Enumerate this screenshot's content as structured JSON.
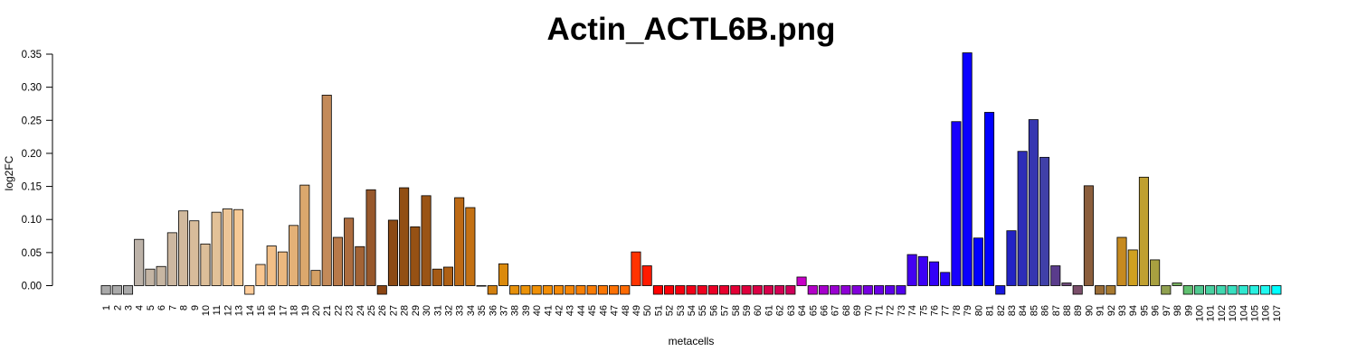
{
  "chart_data": {
    "type": "bar",
    "title": "Actin_ACTL6B.png",
    "xlabel": "metacells",
    "ylabel": "log2FC",
    "ylim": [
      -0.013,
      0.353
    ],
    "yticks": [
      "0.00",
      "0.05",
      "0.10",
      "0.15",
      "0.20",
      "0.25",
      "0.30",
      "0.35"
    ],
    "grid": false,
    "categories": [
      "1",
      "2",
      "3",
      "4",
      "5",
      "6",
      "7",
      "8",
      "9",
      "10",
      "11",
      "12",
      "13",
      "14",
      "15",
      "16",
      "17",
      "18",
      "19",
      "20",
      "21",
      "22",
      "23",
      "24",
      "25",
      "26",
      "27",
      "28",
      "29",
      "30",
      "31",
      "32",
      "33",
      "34",
      "35",
      "36",
      "37",
      "38",
      "39",
      "40",
      "41",
      "42",
      "43",
      "44",
      "45",
      "46",
      "47",
      "48",
      "49",
      "50",
      "51",
      "52",
      "53",
      "54",
      "55",
      "56",
      "57",
      "58",
      "59",
      "60",
      "61",
      "62",
      "63",
      "64",
      "65",
      "66",
      "67",
      "68",
      "69",
      "70",
      "71",
      "72",
      "73",
      "74",
      "75",
      "76",
      "77",
      "78",
      "79",
      "80",
      "81",
      "82",
      "83",
      "84",
      "85",
      "86",
      "87",
      "88",
      "89",
      "90",
      "91",
      "92",
      "93",
      "94",
      "95",
      "96",
      "97",
      "98",
      "99",
      "100",
      "101",
      "102",
      "103",
      "104",
      "105",
      "106",
      "107"
    ],
    "values": [
      -0.013,
      -0.013,
      -0.013,
      0.07,
      0.025,
      0.029,
      0.08,
      0.113,
      0.098,
      0.063,
      0.111,
      0.116,
      0.115,
      -0.013,
      0.032,
      0.06,
      0.051,
      0.091,
      0.152,
      0.023,
      0.288,
      0.073,
      0.102,
      0.059,
      0.145,
      -0.013,
      0.099,
      0.148,
      0.089,
      0.136,
      0.025,
      0.028,
      0.133,
      0.118,
      0.0,
      -0.013,
      0.033,
      -0.013,
      -0.013,
      -0.013,
      -0.013,
      -0.013,
      -0.013,
      -0.013,
      -0.013,
      -0.013,
      -0.013,
      -0.013,
      0.051,
      0.03,
      -0.013,
      -0.013,
      -0.013,
      -0.013,
      -0.013,
      -0.013,
      -0.013,
      -0.013,
      -0.013,
      -0.013,
      -0.013,
      -0.013,
      -0.013,
      0.013,
      -0.013,
      -0.013,
      -0.013,
      -0.013,
      -0.013,
      -0.013,
      -0.013,
      -0.013,
      -0.013,
      0.047,
      0.044,
      0.036,
      0.02,
      0.248,
      0.352,
      0.072,
      0.262,
      -0.013,
      0.083,
      0.203,
      0.251,
      0.194,
      0.03,
      0.004,
      -0.013,
      0.151,
      -0.013,
      -0.013,
      0.073,
      0.054,
      0.164,
      0.039,
      -0.013,
      0.004,
      -0.013,
      -0.013,
      -0.013,
      -0.013,
      -0.013,
      -0.013,
      -0.013,
      -0.013,
      -0.013
    ],
    "colors": [
      "#a9a9a9",
      "#a9a9a9",
      "#a9a9a9",
      "#bcb2a8",
      "#c4b5a4",
      "#c7b6a2",
      "#ccb7a0",
      "#d1b99d",
      "#d8bc9b",
      "#dcbe99",
      "#e2c198",
      "#ecc597",
      "#f6c995",
      "#ffcc99",
      "#f9c690",
      "#f2bf87",
      "#ebb87f",
      "#e4b177",
      "#dba86d",
      "#d3a065",
      "#c38a59",
      "#b8794a",
      "#ad6d3f",
      "#a36335",
      "#97582c",
      "#8b4513",
      "#8c4a14",
      "#924f13",
      "#965114",
      "#9a5415",
      "#a55a15",
      "#ae6015",
      "#bd6a15",
      "#c47113",
      "#c97812",
      "#d2800f",
      "#db8a0c",
      "#e6900a",
      "#eb9208",
      "#ef9006",
      "#f28d05",
      "#f48905",
      "#f68505",
      "#f87f04",
      "#f97b04",
      "#fa7604",
      "#fb7004",
      "#fd6a03",
      "#ff3300",
      "#ff1a00",
      "#ff0000",
      "#fb0008",
      "#f7000f",
      "#f30017",
      "#ef001e",
      "#eb0026",
      "#e7002d",
      "#e30035",
      "#df003c",
      "#db0044",
      "#d7004b",
      "#d30053",
      "#cf005a",
      "#c800c8",
      "#b300c8",
      "#a600cc",
      "#9a00d1",
      "#8e00d6",
      "#8200db",
      "#7600e0",
      "#6a00e5",
      "#5e00ea",
      "#5200ef",
      "#4400f2",
      "#3c00f5",
      "#3300f8",
      "#2800fb",
      "#1800fe",
      "#0a00ff",
      "#0000ff",
      "#0000ff",
      "#1818e0",
      "#2323c4",
      "#2e2eb8",
      "#3636b0",
      "#4040a8",
      "#5a3c8c",
      "#6e4a7a",
      "#7a4e6a",
      "#8b5e3c",
      "#9a6c36",
      "#a87a30",
      "#c68a20",
      "#cfa020",
      "#c0a030",
      "#a8a040",
      "#90a050",
      "#78b060",
      "#60c070",
      "#50c890",
      "#48d0a0",
      "#40d8b0",
      "#38e0c0",
      "#30e8d0",
      "#28f0e0",
      "#20f8f0",
      "#00ffff"
    ]
  }
}
